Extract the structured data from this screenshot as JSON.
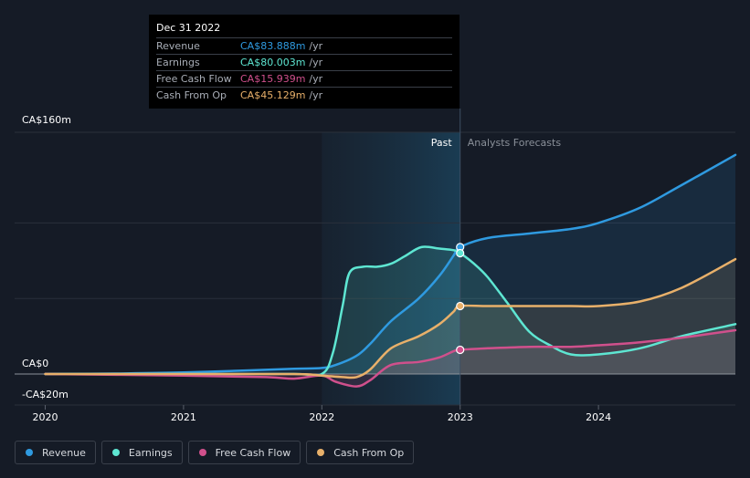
{
  "colors": {
    "background": "#151b26",
    "revenue": "#2f9ae0",
    "earnings": "#5ee6d2",
    "free_cash_flow": "#d0508c",
    "cash_from_op": "#e8b06a",
    "grid": "#2a303b"
  },
  "tooltip": {
    "date": "Dec 31 2022",
    "rows": [
      {
        "label": "Revenue",
        "value": "CA$83.888m",
        "unit": "/yr",
        "color": "#2f9ae0"
      },
      {
        "label": "Earnings",
        "value": "CA$80.003m",
        "unit": "/yr",
        "color": "#5ee6d2"
      },
      {
        "label": "Free Cash Flow",
        "value": "CA$15.939m",
        "unit": "/yr",
        "color": "#d0508c"
      },
      {
        "label": "Cash From Op",
        "value": "CA$45.129m",
        "unit": "/yr",
        "color": "#e8b06a"
      }
    ]
  },
  "legend": [
    {
      "label": "Revenue",
      "color": "#2f9ae0"
    },
    {
      "label": "Earnings",
      "color": "#5ee6d2"
    },
    {
      "label": "Free Cash Flow",
      "color": "#d0508c"
    },
    {
      "label": "Cash From Op",
      "color": "#e8b06a"
    }
  ],
  "chart_data": {
    "type": "line",
    "title": "",
    "xlabel": "",
    "ylabel": "",
    "xlim": [
      2019.99,
      2024.99
    ],
    "ylim": [
      -20,
      160
    ],
    "y_ticks": [
      {
        "value": 160,
        "label": "CA$160m"
      },
      {
        "value": 0,
        "label": "CA$0"
      },
      {
        "value": -20,
        "label": "-CA$20m"
      }
    ],
    "x_ticks": [
      {
        "value": 2020,
        "label": "2020"
      },
      {
        "value": 2021,
        "label": "2021"
      },
      {
        "value": 2022,
        "label": "2022"
      },
      {
        "value": 2023,
        "label": "2023"
      },
      {
        "value": 2024,
        "label": "2024"
      }
    ],
    "gridlines": [
      160,
      100,
      50,
      0
    ],
    "past_label": "Past",
    "forecast_label": "Analysts Forecasts",
    "divider_x": 2023.0,
    "highlight_start_x": 2022.0,
    "series": [
      {
        "name": "Revenue",
        "key": "revenue",
        "points": [
          [
            2020.0,
            0
          ],
          [
            2020.5,
            0.3
          ],
          [
            2021.0,
            1
          ],
          [
            2021.5,
            2.5
          ],
          [
            2021.8,
            3.5
          ],
          [
            2022.0,
            4
          ],
          [
            2022.1,
            6
          ],
          [
            2022.25,
            12
          ],
          [
            2022.35,
            20
          ],
          [
            2022.5,
            35
          ],
          [
            2022.7,
            50
          ],
          [
            2022.85,
            65
          ],
          [
            2022.95,
            78
          ],
          [
            2023.0,
            84
          ],
          [
            2023.2,
            90
          ],
          [
            2023.5,
            93
          ],
          [
            2023.8,
            96
          ],
          [
            2024.0,
            100
          ],
          [
            2024.3,
            110
          ],
          [
            2024.6,
            125
          ],
          [
            2024.99,
            145
          ]
        ]
      },
      {
        "name": "Earnings",
        "key": "earnings",
        "points": [
          [
            2020.0,
            0
          ],
          [
            2021.0,
            0
          ],
          [
            2021.8,
            0
          ],
          [
            2022.0,
            0
          ],
          [
            2022.08,
            14
          ],
          [
            2022.15,
            45
          ],
          [
            2022.2,
            67
          ],
          [
            2022.3,
            71
          ],
          [
            2022.4,
            71
          ],
          [
            2022.5,
            73
          ],
          [
            2022.6,
            78
          ],
          [
            2022.72,
            84
          ],
          [
            2022.85,
            83
          ],
          [
            2022.95,
            82
          ],
          [
            2023.0,
            80
          ],
          [
            2023.1,
            73
          ],
          [
            2023.2,
            64
          ],
          [
            2023.35,
            46
          ],
          [
            2023.5,
            28
          ],
          [
            2023.65,
            19
          ],
          [
            2023.8,
            13
          ],
          [
            2024.0,
            13
          ],
          [
            2024.3,
            17
          ],
          [
            2024.6,
            25
          ],
          [
            2024.99,
            33
          ]
        ]
      },
      {
        "name": "Free Cash Flow",
        "key": "free_cash_flow",
        "points": [
          [
            2020.0,
            0
          ],
          [
            2021.0,
            -1
          ],
          [
            2021.6,
            -2
          ],
          [
            2021.8,
            -3
          ],
          [
            2022.0,
            -1
          ],
          [
            2022.1,
            -5
          ],
          [
            2022.25,
            -8
          ],
          [
            2022.35,
            -4
          ],
          [
            2022.5,
            6
          ],
          [
            2022.7,
            8
          ],
          [
            2022.85,
            11
          ],
          [
            2022.95,
            15
          ],
          [
            2023.0,
            16
          ],
          [
            2023.2,
            17
          ],
          [
            2023.5,
            18
          ],
          [
            2023.8,
            18
          ],
          [
            2024.0,
            19
          ],
          [
            2024.3,
            21
          ],
          [
            2024.6,
            24
          ],
          [
            2024.99,
            29
          ]
        ]
      },
      {
        "name": "Cash From Op",
        "key": "cash_from_op",
        "points": [
          [
            2020.0,
            0
          ],
          [
            2021.0,
            0
          ],
          [
            2021.8,
            0
          ],
          [
            2022.0,
            -1
          ],
          [
            2022.15,
            -2
          ],
          [
            2022.25,
            -2
          ],
          [
            2022.35,
            3
          ],
          [
            2022.5,
            17
          ],
          [
            2022.7,
            25
          ],
          [
            2022.85,
            33
          ],
          [
            2022.95,
            41
          ],
          [
            2023.0,
            45
          ],
          [
            2023.2,
            45
          ],
          [
            2023.5,
            45
          ],
          [
            2023.8,
            45
          ],
          [
            2024.0,
            45
          ],
          [
            2024.3,
            48
          ],
          [
            2024.6,
            57
          ],
          [
            2024.99,
            76
          ]
        ]
      }
    ]
  }
}
